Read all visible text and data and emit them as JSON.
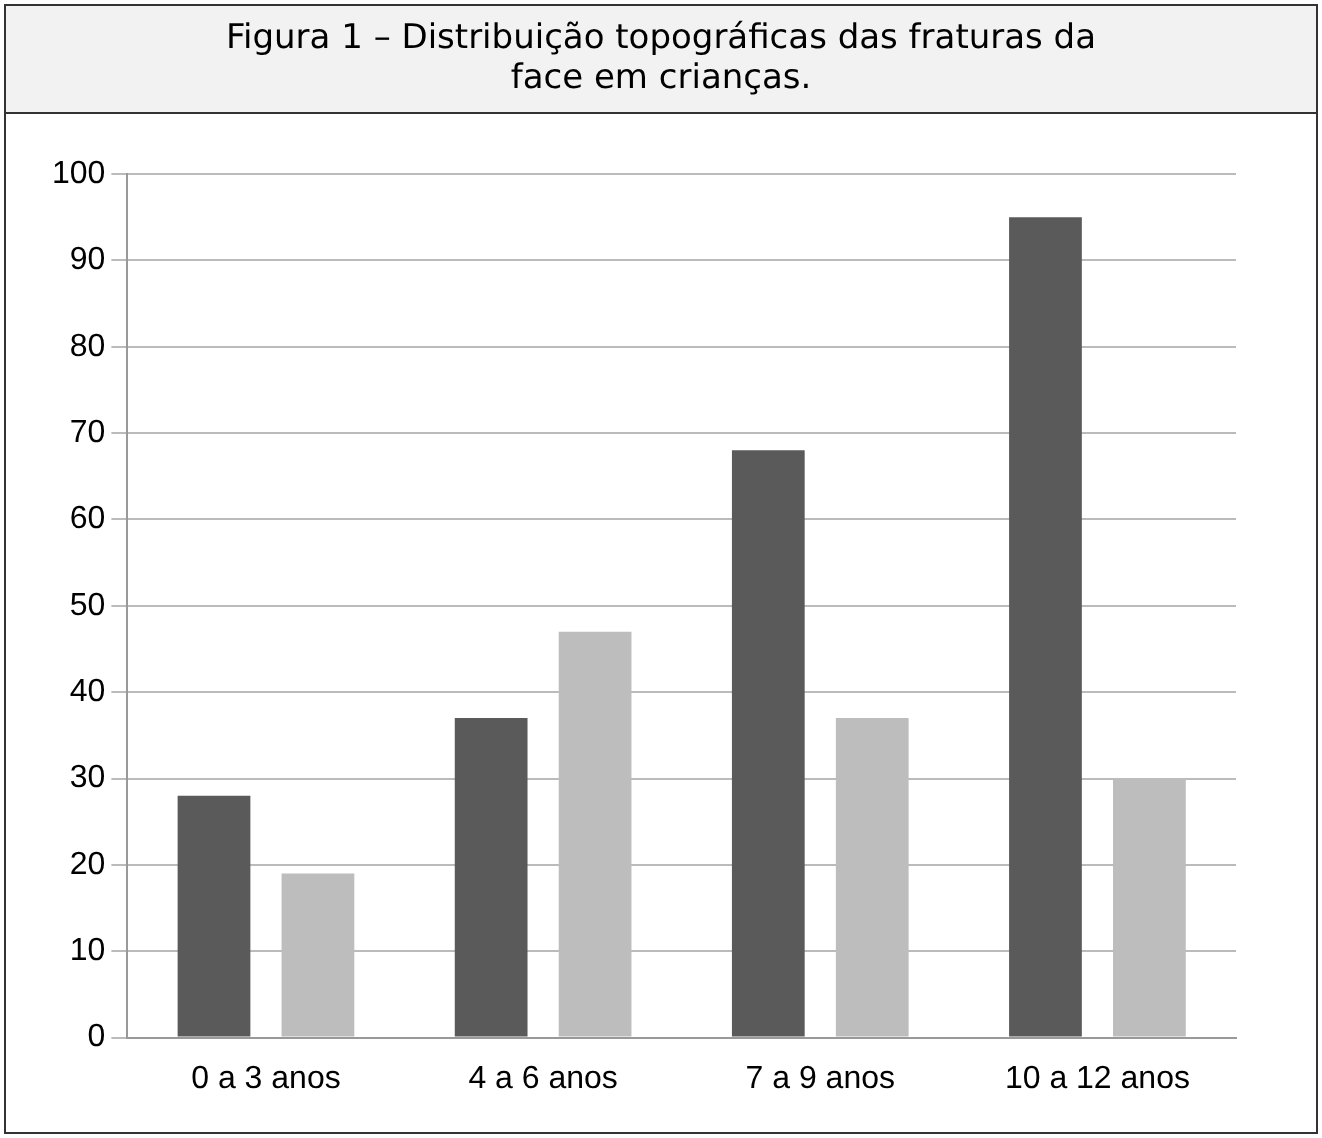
{
  "chart_data": {
    "type": "bar",
    "title": "Figura 1 – Distribuição topográficas das fraturas da face em crianças.",
    "categories": [
      "0 a 3 anos",
      "4 a 6 anos",
      "7 a 9 anos",
      "10 a 12 anos"
    ],
    "series": [
      {
        "color": "#5a5a5a",
        "values": [
          28,
          37,
          68,
          95
        ]
      },
      {
        "color": "#bdbdbd",
        "values": [
          19,
          47,
          37,
          30
        ]
      }
    ],
    "ylim": [
      0,
      100
    ],
    "yticks": [
      0,
      10,
      20,
      30,
      40,
      50,
      60,
      70,
      80,
      90,
      100
    ],
    "grid": "y",
    "legend": false
  }
}
